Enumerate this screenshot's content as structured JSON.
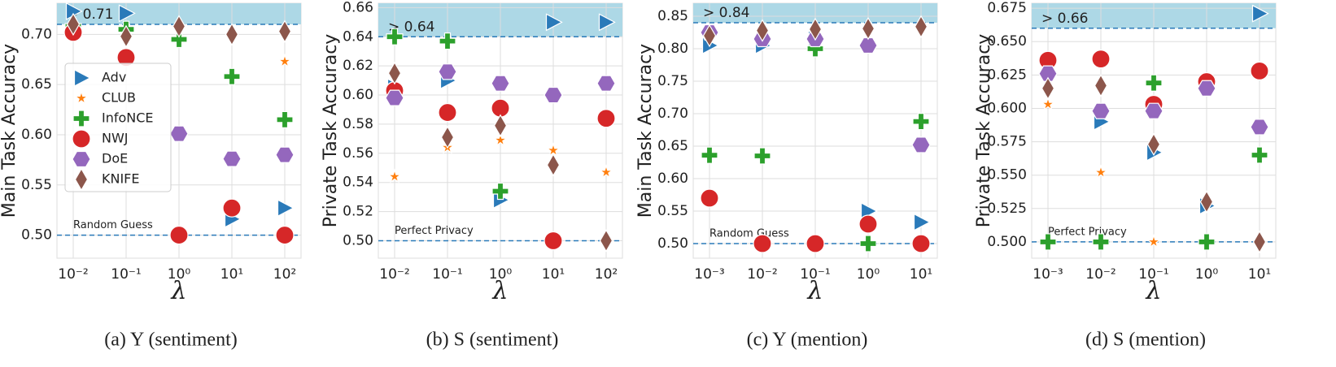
{
  "chart_data": [
    {
      "type": "scatter",
      "caption": "(a) Y (sentiment)",
      "y_label": "Main Task Accuracy",
      "x_label": "λ",
      "categories": [
        "10⁻²",
        "10⁻¹",
        "10⁰",
        "10¹",
        "10²"
      ],
      "ylim": [
        0.477,
        0.731
      ],
      "yticks": [
        {
          "value": 0.5,
          "label": "0.50"
        },
        {
          "value": 0.55,
          "label": "0.55"
        },
        {
          "value": 0.6,
          "label": "0.60"
        },
        {
          "value": 0.65,
          "label": "0.65"
        },
        {
          "value": 0.7,
          "label": "0.70"
        }
      ],
      "grid": true,
      "legend": "center left",
      "threshold": 0.71,
      "threshold_label": "> 0.71",
      "baseline": 0.5,
      "baseline_label": "Random Guess",
      "series": [
        {
          "name": "Adv",
          "color": "#2a7ab9",
          "marker": "triangle-right",
          "values": [
            0.723,
            0.721,
            null,
            0.516,
            0.527
          ]
        },
        {
          "name": "CLUB",
          "color": "#ff7f0e",
          "marker": "star",
          "values": [
            null,
            null,
            null,
            null,
            0.673
          ]
        },
        {
          "name": "InfoNCE",
          "color": "#2ca02c",
          "marker": "plus",
          "values": [
            0.708,
            0.705,
            0.695,
            0.658,
            0.615
          ]
        },
        {
          "name": "NWJ",
          "color": "#d62728",
          "marker": "circle",
          "values": [
            0.702,
            0.677,
            0.5,
            0.527,
            0.5
          ]
        },
        {
          "name": "DoE",
          "color": "#9467bd",
          "marker": "hexagon",
          "values": [
            null,
            null,
            0.601,
            0.576,
            0.58
          ]
        },
        {
          "name": "KNIFE",
          "color": "#8c564b",
          "marker": "diamond",
          "values": [
            0.71,
            0.698,
            0.708,
            0.7,
            0.703
          ]
        }
      ]
    },
    {
      "type": "scatter",
      "caption": "(b) S (sentiment)",
      "y_label": "Private Task Accuracy",
      "x_label": "λ",
      "categories": [
        "10⁻²",
        "10⁻¹",
        "10⁰",
        "10¹",
        "10²"
      ],
      "ylim": [
        0.488,
        0.663
      ],
      "yticks": [
        {
          "value": 0.5,
          "label": "0.50"
        },
        0.52,
        0.54,
        0.56,
        0.58,
        {
          "value": 0.6,
          "label": "0.60"
        },
        0.62,
        0.64,
        0.66
      ],
      "grid": true,
      "threshold": 0.64,
      "threshold_label": "> 0.64",
      "baseline": 0.5,
      "baseline_label": "Perfect Privacy",
      "series": [
        {
          "color": "#2a7ab9",
          "marker": "triangle-right",
          "values": [
            0.6055,
            0.61,
            0.528,
            0.65,
            0.65
          ]
        },
        {
          "color": "#ff7f0e",
          "marker": "star",
          "values": [
            0.544,
            0.564,
            0.569,
            0.562,
            0.547
          ]
        },
        {
          "color": "#2ca02c",
          "marker": "plus",
          "values": [
            0.64,
            0.637,
            0.534,
            null,
            null
          ]
        },
        {
          "color": "#d62728",
          "marker": "circle",
          "values": [
            0.603,
            0.588,
            0.591,
            0.5,
            0.584
          ]
        },
        {
          "color": "#9467bd",
          "marker": "hexagon",
          "values": [
            0.598,
            0.616,
            0.608,
            0.6,
            0.608
          ]
        },
        {
          "color": "#8c564b",
          "marker": "diamond",
          "values": [
            0.615,
            0.571,
            0.579,
            0.552,
            0.5
          ]
        }
      ]
    },
    {
      "type": "scatter",
      "caption": "(c) Y (mention)",
      "y_label": "Main Task Accuracy",
      "x_label": "λ",
      "categories": [
        "10⁻³",
        "10⁻²",
        "10⁻¹",
        "10⁰",
        "10¹"
      ],
      "ylim": [
        0.4775,
        0.87
      ],
      "yticks": [
        {
          "value": 0.5,
          "label": "0.50"
        },
        0.55,
        {
          "value": 0.6,
          "label": "0.60"
        },
        0.65,
        {
          "value": 0.7,
          "label": "0.70"
        },
        0.75,
        {
          "value": 0.8,
          "label": "0.80"
        },
        0.85
      ],
      "grid": true,
      "threshold": 0.84,
      "threshold_label": "> 0.84",
      "baseline": 0.5,
      "baseline_label": "Random Guess",
      "series": [
        {
          "color": "#2a7ab9",
          "marker": "triangle-right",
          "values": [
            0.805,
            0.805,
            0.815,
            0.55,
            0.533
          ]
        },
        {
          "color": "#ff7f0e",
          "marker": "star",
          "values": [
            null,
            null,
            null,
            null,
            null
          ]
        },
        {
          "color": "#2ca02c",
          "marker": "plus",
          "values": [
            0.636,
            0.635,
            0.8,
            0.5,
            0.688
          ]
        },
        {
          "color": "#d62728",
          "marker": "circle",
          "values": [
            0.57,
            0.5,
            0.5,
            0.53,
            0.5
          ]
        },
        {
          "color": "#9467bd",
          "marker": "hexagon",
          "values": [
            0.825,
            0.815,
            0.815,
            0.805,
            0.652
          ]
        },
        {
          "color": "#8c564b",
          "marker": "diamond",
          "values": [
            0.82,
            0.828,
            0.83,
            0.831,
            0.834
          ]
        }
      ]
    },
    {
      "type": "scatter",
      "caption": "(d) S (mention)",
      "y_label": "Private Task Accuracy",
      "x_label": "λ",
      "categories": [
        "10⁻³",
        "10⁻²",
        "10⁻¹",
        "10⁰",
        "10¹"
      ],
      "ylim": [
        0.4878,
        0.6787
      ],
      "yticks": [
        {
          "value": 0.5,
          "label": "0.500"
        },
        0.525,
        {
          "value": 0.55,
          "label": "0.550"
        },
        0.575,
        {
          "value": 0.6,
          "label": "0.600"
        },
        0.625,
        {
          "value": 0.65,
          "label": "0.650"
        },
        0.675
      ],
      "grid": true,
      "threshold": 0.66,
      "threshold_label": "> 0.66",
      "baseline": 0.5,
      "baseline_label": "Perfect Privacy",
      "series": [
        {
          "color": "#2a7ab9",
          "marker": "triangle-right",
          "values": [
            null,
            0.59,
            0.567,
            0.527,
            0.671
          ]
        },
        {
          "color": "#ff7f0e",
          "marker": "star",
          "values": [
            0.603,
            0.552,
            0.5,
            0.5,
            0.565
          ]
        },
        {
          "color": "#2ca02c",
          "marker": "plus",
          "values": [
            0.5,
            0.5,
            0.619,
            0.5,
            0.565
          ]
        },
        {
          "color": "#d62728",
          "marker": "circle",
          "values": [
            0.636,
            0.637,
            0.603,
            0.62,
            0.628
          ]
        },
        {
          "color": "#9467bd",
          "marker": "hexagon",
          "values": [
            0.626,
            0.598,
            0.598,
            0.615,
            0.586
          ]
        },
        {
          "color": "#8c564b",
          "marker": "diamond",
          "values": [
            0.615,
            0.617,
            0.573,
            0.53,
            0.5
          ]
        }
      ]
    }
  ]
}
